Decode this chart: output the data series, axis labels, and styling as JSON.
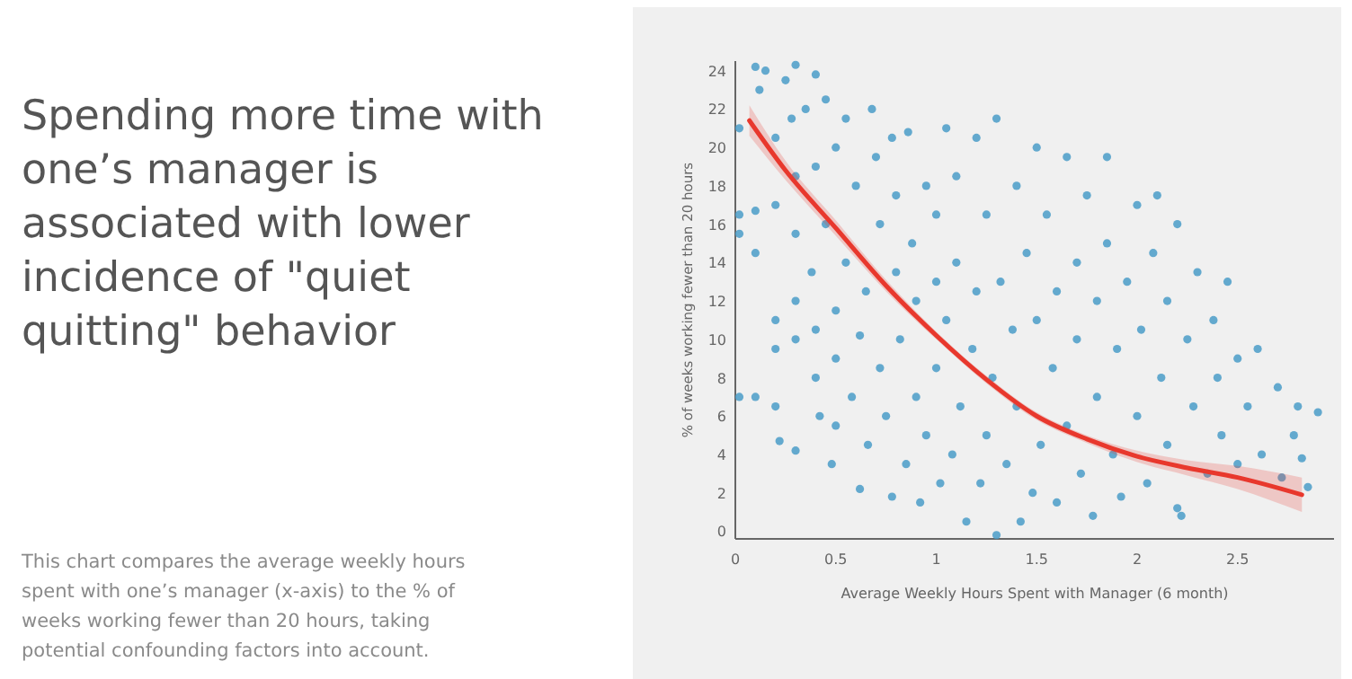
{
  "chart_data": {
    "type": "scatter",
    "title": "Spending more time with one’s manager is associated with lower incidence of \"quiet quitting\" behavior",
    "annotations": [
      "This chart compares the average weekly hours spent with one’s manager (x-axis) to the % of weeks working fewer than 20 hours, taking potential confounding factors into account."
    ],
    "xlabel": "Average Weekly Hours Spent with Manager (6 month)",
    "ylabel": "% of weeks working fewer than 20 hours",
    "xlim": [
      0,
      2.98
    ],
    "ylim": [
      -0.4,
      24.5
    ],
    "xticks": [
      0,
      0.5,
      1,
      1.5,
      2,
      2.5
    ],
    "yticks": [
      0,
      2,
      4,
      6,
      8,
      10,
      12,
      14,
      16,
      18,
      20,
      22,
      24
    ],
    "grid": false,
    "series": [
      {
        "marker": "circle",
        "color": "#4a9cc8",
        "x": [
          0.02,
          0.02,
          0.02,
          0.02,
          0.1,
          0.12,
          0.1,
          0.1,
          0.1,
          0.15,
          0.2,
          0.2,
          0.2,
          0.2,
          0.2,
          0.22,
          0.25,
          0.28,
          0.3,
          0.3,
          0.3,
          0.3,
          0.3,
          0.3,
          0.35,
          0.38,
          0.4,
          0.4,
          0.4,
          0.4,
          0.42,
          0.45,
          0.45,
          0.48,
          0.5,
          0.5,
          0.5,
          0.5,
          0.55,
          0.55,
          0.58,
          0.6,
          0.62,
          0.62,
          0.65,
          0.66,
          0.68,
          0.7,
          0.72,
          0.72,
          0.75,
          0.78,
          0.78,
          0.8,
          0.8,
          0.82,
          0.85,
          0.86,
          0.88,
          0.9,
          0.9,
          0.92,
          0.95,
          0.95,
          1.0,
          1.0,
          1.0,
          1.02,
          1.05,
          1.05,
          1.08,
          1.1,
          1.1,
          1.12,
          1.15,
          1.18,
          1.2,
          1.2,
          1.22,
          1.25,
          1.25,
          1.28,
          1.3,
          1.3,
          1.32,
          1.35,
          1.38,
          1.4,
          1.4,
          1.42,
          1.45,
          1.48,
          1.5,
          1.5,
          1.52,
          1.55,
          1.58,
          1.6,
          1.6,
          1.65,
          1.65,
          1.7,
          1.7,
          1.72,
          1.75,
          1.78,
          1.8,
          1.8,
          1.85,
          1.85,
          1.88,
          1.9,
          1.92,
          1.95,
          2.0,
          2.0,
          2.02,
          2.05,
          2.08,
          2.1,
          2.12,
          2.15,
          2.15,
          2.2,
          2.2,
          2.22,
          2.25,
          2.28,
          2.3,
          2.35,
          2.38,
          2.4,
          2.42,
          2.45,
          2.5,
          2.5,
          2.55,
          2.6,
          2.62,
          2.7,
          2.72,
          2.78,
          2.8,
          2.82,
          2.85,
          2.9
        ],
        "values": [
          21,
          16.5,
          15.5,
          7,
          24.2,
          23,
          16.7,
          14.5,
          7,
          24,
          20.5,
          17,
          11,
          9.5,
          6.5,
          4.7,
          23.5,
          21.5,
          24.3,
          18.5,
          15.5,
          12,
          10,
          4.2,
          22,
          13.5,
          23.8,
          19,
          10.5,
          8,
          6,
          22.5,
          16,
          3.5,
          20,
          11.5,
          9,
          5.5,
          21.5,
          14,
          7,
          18,
          10.2,
          2.2,
          12.5,
          4.5,
          22,
          19.5,
          16,
          8.5,
          6,
          20.5,
          1.8,
          17.5,
          13.5,
          10,
          3.5,
          20.8,
          15,
          12,
          7,
          1.5,
          18,
          5,
          16.5,
          13,
          8.5,
          2.5,
          21,
          11,
          4,
          18.5,
          14,
          6.5,
          0.5,
          9.5,
          20.5,
          12.5,
          2.5,
          16.5,
          5,
          8,
          -0.2,
          21.5,
          13,
          3.5,
          10.5,
          18,
          6.5,
          0.5,
          14.5,
          2,
          11,
          20,
          4.5,
          16.5,
          8.5,
          12.5,
          1.5,
          19.5,
          5.5,
          14,
          10,
          3,
          17.5,
          0.8,
          12,
          7,
          19.5,
          15,
          4,
          9.5,
          1.8,
          13,
          17,
          6,
          10.5,
          2.5,
          14.5,
          17.5,
          8,
          12,
          4.5,
          16,
          1.2,
          0.8,
          10,
          6.5,
          13.5,
          3,
          11,
          8,
          5,
          13,
          9,
          3.5,
          6.5,
          9.5,
          4,
          7.5,
          2.8,
          5,
          6.5,
          3.8,
          2.3,
          6.2
        ]
      },
      {
        "type": "line",
        "color": "#e8382d",
        "x": [
          0.07,
          0.25,
          0.5,
          0.75,
          1.0,
          1.25,
          1.5,
          1.75,
          2.0,
          2.25,
          2.5,
          2.82
        ],
        "values": [
          21.4,
          18.8,
          15.8,
          12.8,
          10.2,
          7.9,
          6.0,
          4.8,
          3.9,
          3.3,
          2.8,
          1.9
        ],
        "lower": [
          20.6,
          18.3,
          15.4,
          12.5,
          10.0,
          7.7,
          5.8,
          4.6,
          3.6,
          2.9,
          2.2,
          1.0
        ],
        "upper": [
          22.2,
          19.3,
          16.2,
          13.1,
          10.4,
          8.1,
          6.2,
          5.0,
          4.2,
          3.7,
          3.4,
          2.8
        ]
      }
    ]
  }
}
